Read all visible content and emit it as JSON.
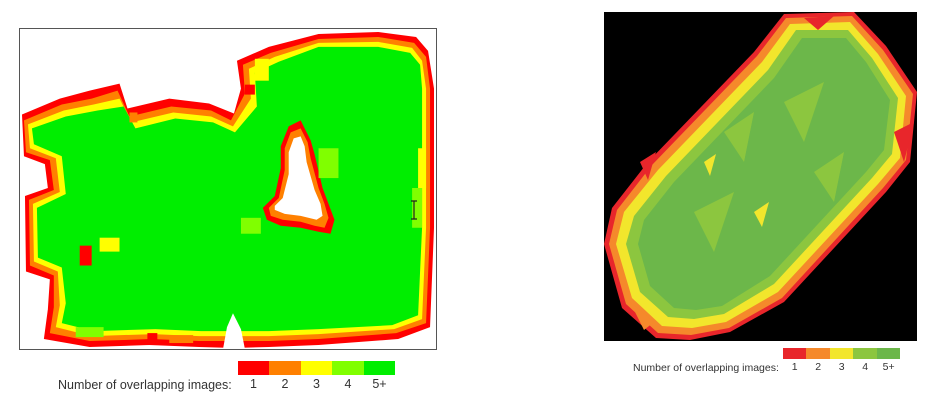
{
  "legends": {
    "title": "Number of overlapping images:",
    "labels": [
      "1",
      "2",
      "3",
      "4",
      "5+"
    ]
  },
  "left_legend_colors": [
    "#ff0000",
    "#ff8000",
    "#ffff00",
    "#80ff00",
    "#00ee00"
  ],
  "right_legend_colors": [
    "#e8262b",
    "#f5892b",
    "#f2e62c",
    "#8cc63f",
    "#6cb74a"
  ],
  "left_map_colors": {
    "c1": "#ff0000",
    "c2": "#ff8000",
    "c3": "#ffff00",
    "c4": "#80ff00",
    "c5": "#00ee00"
  },
  "right_map_colors": {
    "background": "#000000",
    "c1": "#e8262b",
    "c2": "#f5892b",
    "c3": "#f2e62c",
    "c4": "#8cc63f",
    "c5": "#6cb74a"
  },
  "icons": {
    "cursor": "text-cursor-icon"
  }
}
